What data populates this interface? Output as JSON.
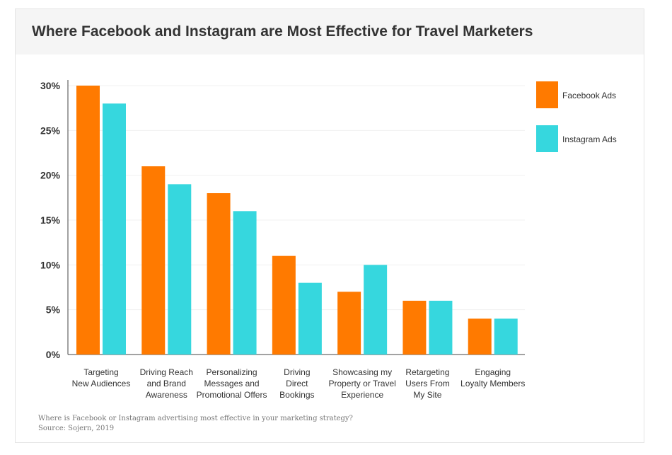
{
  "title": "Where Facebook and Instagram are Most Effective for Travel Marketers",
  "footer": {
    "question": "Where is Facebook or Instagram advertising most effective in your marketing strategy?",
    "source": "Source: Sojern, 2019"
  },
  "colors": {
    "facebook": "#ff7a00",
    "instagram": "#36d7de"
  },
  "chart_data": {
    "type": "bar",
    "title": "Where Facebook and Instagram are Most Effective for Travel Marketers",
    "categories": [
      [
        "Targeting",
        "New Audiences"
      ],
      [
        "Driving Reach",
        "and Brand",
        "Awareness"
      ],
      [
        "Personalizing",
        "Messages and",
        "Promotional Offers"
      ],
      [
        "Driving",
        "Direct",
        "Bookings"
      ],
      [
        "Showcasing my",
        "Property or Travel",
        "Experience"
      ],
      [
        "Retargeting",
        "Users From",
        "My Site"
      ],
      [
        "Engaging",
        "Loyalty Members"
      ]
    ],
    "series": [
      {
        "name": "Facebook Ads",
        "color": "#ff7a00",
        "values": [
          30,
          21,
          18,
          11,
          7,
          6,
          4
        ]
      },
      {
        "name": "Instagram Ads",
        "color": "#36d7de",
        "values": [
          28,
          19,
          16,
          8,
          10,
          6,
          4
        ]
      }
    ],
    "yticks": [
      "0%",
      "5%",
      "10%",
      "15%",
      "20%",
      "25%",
      "30%"
    ],
    "ylim": [
      0,
      30
    ],
    "grid": true,
    "legend_position": "right"
  }
}
